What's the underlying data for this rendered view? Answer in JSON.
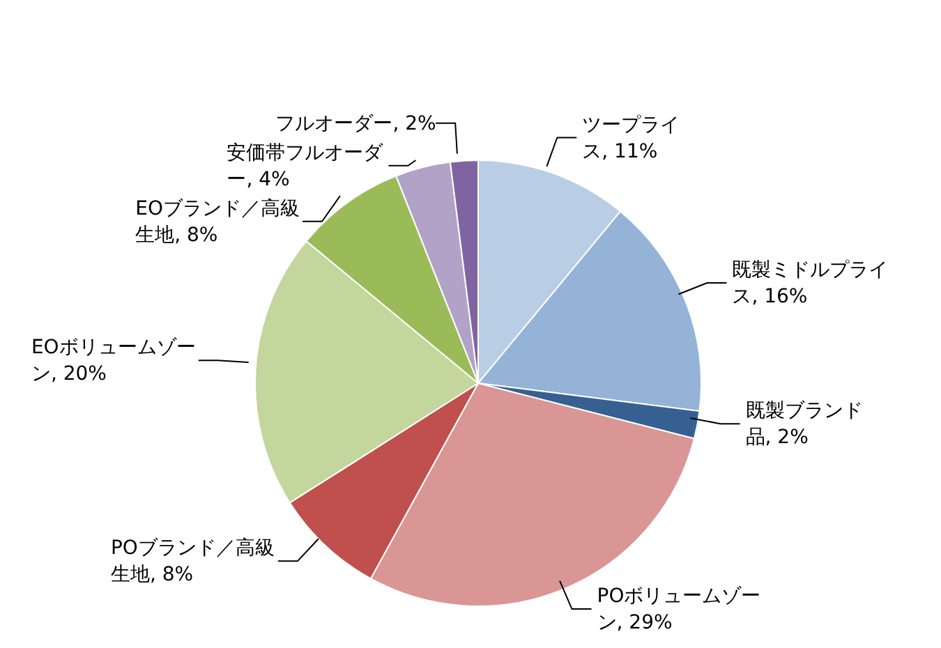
{
  "chart_data": {
    "type": "pie",
    "categories": [
      "ツープライス",
      "既製ミドルプライス",
      "既製ブランド品",
      "POボリュームゾーン",
      "POブランド／高級生地",
      "EOボリュームゾーン",
      "EOブランド／高級生地",
      "安価帯フルオーダー",
      "フルオーダー"
    ],
    "values": [
      11,
      16,
      2,
      29,
      8,
      20,
      8,
      4,
      2
    ],
    "value_labels": [
      ", 11%",
      ", 16%",
      ", 2%",
      ", 29%",
      ", 8%",
      ", 20%",
      ", 8%",
      ", 4%",
      ", 2%"
    ],
    "colors": [
      "#b9cde5",
      "#95b3d7",
      "#376092",
      "#d99694",
      "#c0504d",
      "#c3d69b",
      "#9bbb59",
      "#b3a2c7",
      "#8064a2"
    ],
    "legend": false
  }
}
